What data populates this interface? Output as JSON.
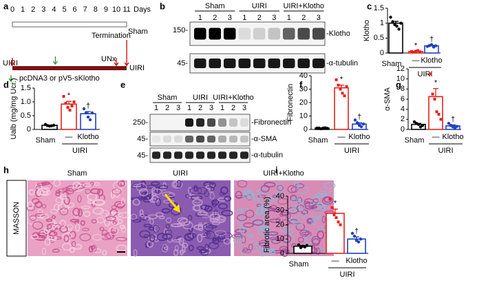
{
  "panel_labels": [
    "a",
    "b",
    "c",
    "d",
    "e",
    "f",
    "g",
    "h",
    "i"
  ],
  "timeline": {
    "days": [
      0,
      1,
      2,
      3,
      4,
      5,
      6,
      7,
      8,
      9,
      10,
      11
    ],
    "days_label": "Days",
    "sham_label": "Sham",
    "uiri_label": "UIRI",
    "uiri_left_label": "UIRI",
    "termination": "Termination",
    "unx": "UNx",
    "legend": "pcDNA3 or pV5-sKlotho"
  },
  "blot_b": {
    "groups": [
      "Sham",
      "UIRI",
      "UIRI+Klotho"
    ],
    "lanes": [
      1,
      2,
      3
    ],
    "markers": [
      "150-",
      "45-"
    ],
    "bands": [
      "-Klotho",
      "-α-tubulin"
    ]
  },
  "blot_e": {
    "groups": [
      "Sham",
      "UIRI",
      "UIRI+Klotho"
    ],
    "lanes": [
      1,
      2,
      3
    ],
    "markers": [
      "250-",
      "45-",
      "45-"
    ],
    "bands": [
      "-Fibronectin",
      "-α-SMA",
      "-α-tubulin"
    ]
  },
  "histology": {
    "stain": "MASSON",
    "titles": [
      "Sham",
      "UIRI",
      "UIRI+Klotho"
    ]
  },
  "chart_data": [
    {
      "type": "bar",
      "ylabel": "Klotho",
      "categories": [
        "Sham",
        "—",
        "Klotho"
      ],
      "group_label": "UIRI",
      "values": [
        1.0,
        0.05,
        0.24
      ],
      "errors": [
        0.06,
        0.01,
        0.02
      ],
      "points": [
        [
          1.2,
          1.05,
          0.95,
          0.9,
          0.8,
          1.0
        ],
        [
          0.05,
          0.03,
          0.06,
          0.08,
          0.04
        ],
        [
          0.22,
          0.25,
          0.28,
          0.2,
          0.24
        ]
      ],
      "colors": [
        "#000000",
        "#e8201c",
        "#1f3fbf"
      ],
      "annotations": [
        null,
        "*",
        "†"
      ],
      "ylim": [
        0,
        1.5
      ],
      "yticks": [
        0,
        0.5,
        1,
        1.5
      ]
    },
    {
      "type": "bar",
      "ylabel": "Ualb (mg/mg Ucr.)",
      "categories": [
        "Sham",
        "—",
        "Klotho"
      ],
      "group_label": "UIRI",
      "values": [
        0.15,
        0.92,
        0.57
      ],
      "errors": [
        0.01,
        0.1,
        0.08
      ],
      "points": [
        [
          0.18,
          0.14,
          0.12,
          0.13,
          0.15
        ],
        [
          1.2,
          0.95,
          0.8,
          0.7,
          0.85,
          1.0
        ],
        [
          0.75,
          0.6,
          0.45,
          0.35,
          0.6
        ]
      ],
      "colors": [
        "#000000",
        "#e8201c",
        "#1f3fbf"
      ],
      "annotations": [
        null,
        "*",
        "†"
      ],
      "ylim": [
        0,
        1.5
      ],
      "yticks": [
        0,
        0.5,
        {
          "value": 1,
          "label": "1.0"
        },
        1.5
      ]
    },
    {
      "type": "bar",
      "ylabel": "Fibronectin",
      "categories": [
        "Sham",
        "—",
        "Klotho"
      ],
      "group_label": "UIRI",
      "values": [
        1,
        31,
        4
      ],
      "errors": [
        0.2,
        2,
        1
      ],
      "points": [
        [
          1,
          1,
          0.5,
          1,
          1.2,
          0.8
        ],
        [
          37,
          33,
          30,
          27,
          25,
          32
        ],
        [
          7,
          5,
          3,
          2,
          4
        ]
      ],
      "colors": [
        "#000000",
        "#e8201c",
        "#1f3fbf"
      ],
      "annotations": [
        null,
        "*",
        "†"
      ],
      "ylim": [
        0,
        40
      ],
      "yticks": [
        0,
        10,
        20,
        30,
        40
      ]
    },
    {
      "type": "bar",
      "ylabel": "α-SMA",
      "categories": [
        "Sham",
        "—",
        "Klotho"
      ],
      "group_label": "UIRI",
      "values": [
        1,
        6.5,
        0.7
      ],
      "errors": [
        0.2,
        1.6,
        0.2
      ],
      "points": [
        [
          1.5,
          1.2,
          1,
          0.5,
          0.8
        ],
        [
          11,
          7,
          6,
          3.5,
          3,
          2
        ],
        [
          1.2,
          0.8,
          0.5,
          0.3,
          0.6
        ]
      ],
      "colors": [
        "#000000",
        "#e8201c",
        "#1f3fbf"
      ],
      "annotations": [
        null,
        "*",
        "†"
      ],
      "ylim": [
        0,
        12
      ],
      "yticks": [
        0,
        2,
        4,
        6,
        8,
        10,
        12
      ]
    },
    {
      "type": "bar",
      "ylabel": "Fibrotic area (%)",
      "categories": [
        "Sham",
        "—",
        "Klotho"
      ],
      "group_label": "UIRI",
      "values": [
        5,
        28,
        10
      ],
      "errors": [
        0.5,
        3,
        1.5
      ],
      "points": [
        [
          6,
          4,
          5,
          4.5,
          5.5
        ],
        [
          38,
          32,
          27,
          25,
          22,
          20
        ],
        [
          14,
          12,
          9,
          8,
          10
        ]
      ],
      "colors": [
        "#000000",
        "#e8201c",
        "#1f3fbf"
      ],
      "annotations": [
        null,
        "*",
        "†"
      ],
      "ylim": [
        0,
        40
      ],
      "yticks": [
        0,
        10,
        20,
        30,
        40
      ]
    }
  ]
}
